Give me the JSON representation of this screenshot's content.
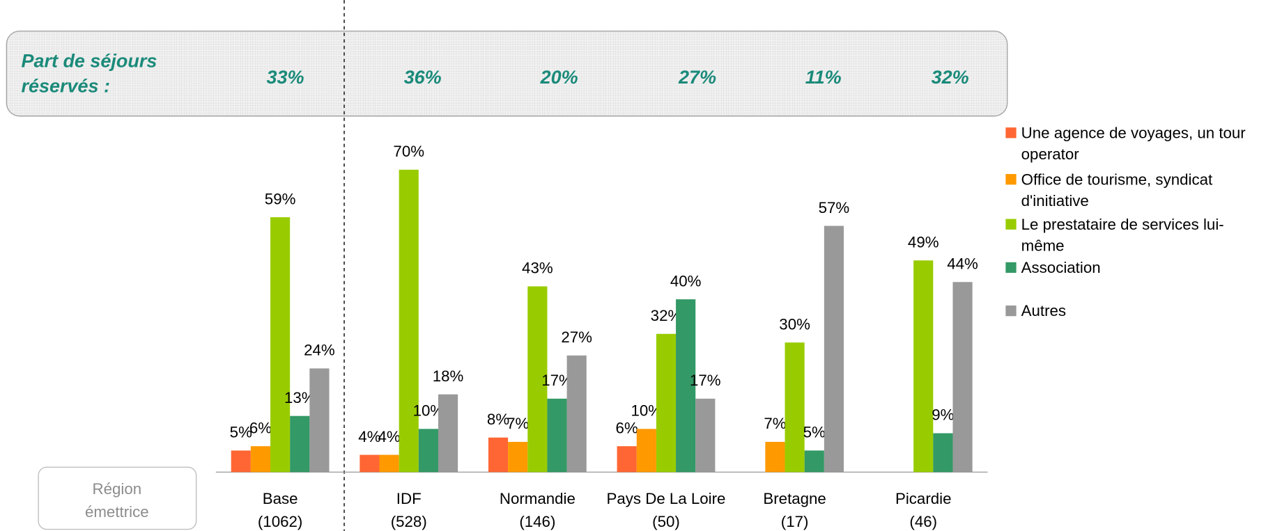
{
  "chart_data": {
    "type": "bar",
    "banner_label": [
      "Part de séjours",
      "réservés :"
    ],
    "banner_values": [
      "33%",
      "36%",
      "20%",
      "27%",
      "11%",
      "32%"
    ],
    "region_label": [
      "Région",
      "émettrice"
    ],
    "categories": [
      "Base",
      "IDF",
      "Normandie",
      "Pays De La Loire",
      "Bretagne",
      "Picardie"
    ],
    "category_sublabels": [
      "(1062)",
      "(528)",
      "(146)",
      "(50)",
      "(17)",
      "(46)"
    ],
    "ylim": [
      0,
      100
    ],
    "series": [
      {
        "name": "Une agence de voyages, un tour operator",
        "color": "#ff6633",
        "values": [
          5,
          4,
          8,
          6,
          null,
          null
        ],
        "value_labels": [
          "5%",
          "4%",
          "8%",
          "6%",
          null,
          null
        ]
      },
      {
        "name": "Office de tourisme, syndicat d'initiative",
        "color": "#ff9900",
        "values": [
          6,
          4,
          7,
          10,
          7,
          null
        ],
        "value_labels": [
          "6%",
          "4%",
          "7%",
          "10%",
          "7%",
          null
        ]
      },
      {
        "name": "Le prestataire de services lui-même",
        "color": "#99cc00",
        "values": [
          59,
          70,
          43,
          32,
          30,
          49
        ],
        "value_labels": [
          "59%",
          "70%",
          "43%",
          "32%",
          "30%",
          "49%"
        ]
      },
      {
        "name": "Association",
        "color": "#339966",
        "values": [
          13,
          10,
          17,
          40,
          5,
          9
        ],
        "value_labels": [
          "13%",
          "10%",
          "17%",
          "40%",
          "5%",
          "9%"
        ]
      },
      {
        "name": "Autres",
        "color": "#999999",
        "values": [
          24,
          18,
          27,
          17,
          57,
          44
        ],
        "value_labels": [
          "24%",
          "18%",
          "27%",
          "17%",
          "57%",
          "44%"
        ]
      }
    ]
  }
}
